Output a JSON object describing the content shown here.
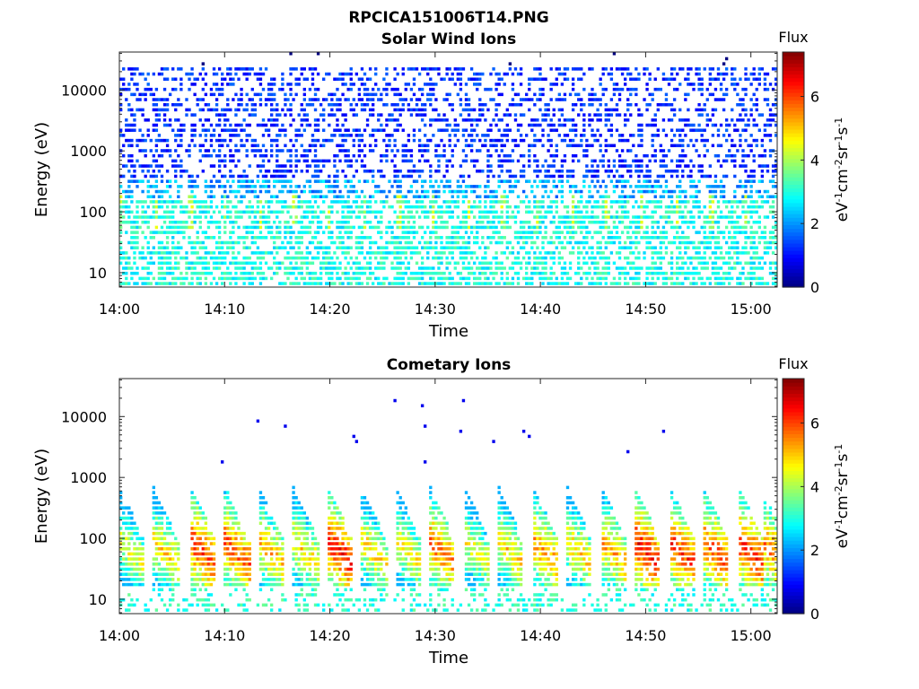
{
  "figure": {
    "title": "RPCICA151006T14.PNG"
  },
  "chart_data": [
    {
      "type": "heatmap",
      "title": "Solar Wind Ions",
      "xlabel": "Time",
      "ylabel": "Energy (eV)",
      "y_scale": "log",
      "x_ticks": [
        "14:00",
        "14:10",
        "14:20",
        "14:30",
        "14:40",
        "14:50",
        "15:00"
      ],
      "x_range_minutes": [
        0,
        62.5
      ],
      "y_ticks": [
        10,
        100,
        1000,
        10000
      ],
      "y_range_eV": [
        5.8,
        42000
      ],
      "colorbar": {
        "title": "Flux",
        "label": "eV-1cm-2sr-1s-1",
        "ticks": [
          0,
          2,
          4,
          6
        ],
        "range": [
          0,
          7.4
        ]
      },
      "grid": false,
      "description_of_values": "Sparse blue (flux ~1) counts from ~300 eV to ~20 keV; cyan/green (flux ~2.5-3.5) below ~200 eV with brief green/yellow bursts near 100 eV"
    },
    {
      "type": "heatmap",
      "title": "Cometary Ions",
      "xlabel": "Time",
      "ylabel": "Energy (eV)",
      "y_scale": "log",
      "x_ticks": [
        "14:00",
        "14:10",
        "14:20",
        "14:30",
        "14:40",
        "14:50",
        "15:00"
      ],
      "x_range_minutes": [
        0,
        62.5
      ],
      "y_ticks": [
        10,
        100,
        1000,
        10000
      ],
      "y_range_eV": [
        5.8,
        42000
      ],
      "colorbar": {
        "title": "Flux",
        "label": "eV-1cm-2sr-1s-1",
        "ticks": [
          0,
          2,
          4,
          6
        ],
        "range": [
          0,
          7.4
        ]
      },
      "grid": false,
      "bursts_start_minutes": [
        0,
        3.2,
        6.8,
        10.0,
        13.2,
        16.5,
        19.8,
        23.0,
        26.3,
        29.5,
        32.8,
        36.0,
        39.3,
        42.5,
        45.8,
        49.0,
        52.3,
        55.5,
        58.8,
        61.0
      ],
      "burst_peak_flux": [
        4.6,
        5.0,
        6.2,
        6.0,
        5.2,
        5.0,
        6.4,
        5.0,
        4.8,
        5.8,
        4.6,
        5.0,
        5.6,
        5.0,
        5.4,
        6.4,
        6.2,
        6.0,
        6.3,
        5.8
      ],
      "description_of_values": "Repeating ~3 minute bursts of cometary ions between ~15 eV and ~700 eV peaking near 40-150 eV; isolated blue counts at 2-20 keV"
    }
  ]
}
